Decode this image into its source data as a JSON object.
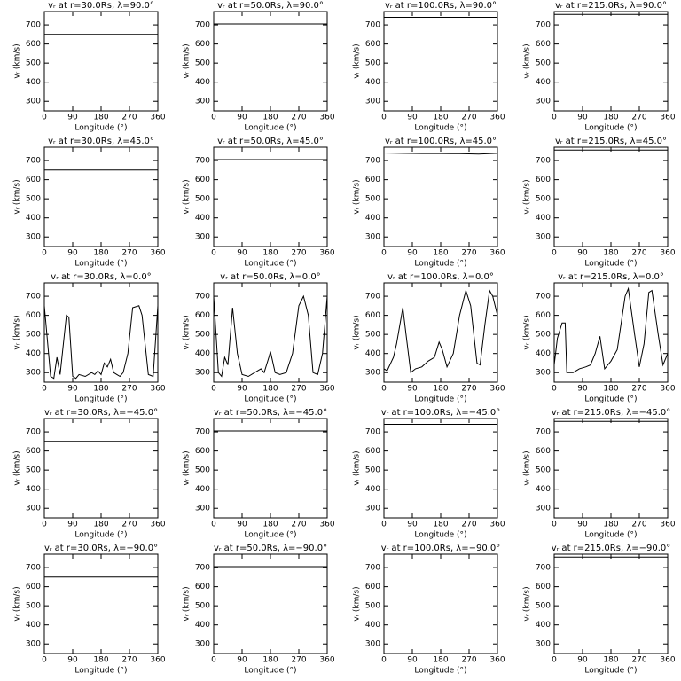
{
  "chart_data": [
    {
      "type": "line",
      "title": "vᵣ at r=30.0Rs, λ=90.0°",
      "xlabel": "Longitude (°)",
      "ylabel": "vᵣ (km/s)",
      "x": [
        0,
        360
      ],
      "values": [
        650,
        650
      ],
      "color": "#000000",
      "xlim": [
        0,
        360
      ],
      "ylim": [
        250,
        770
      ],
      "xticks": [
        0,
        90,
        180,
        270,
        360
      ],
      "yticks": [
        300,
        400,
        500,
        600,
        700
      ]
    },
    {
      "type": "line",
      "title": "vᵣ at r=50.0Rs, λ=90.0°",
      "xlabel": "Longitude (°)",
      "ylabel": "vᵣ (km/s)",
      "x": [
        0,
        360
      ],
      "values": [
        705,
        705
      ],
      "color": "#000000",
      "xlim": [
        0,
        360
      ],
      "ylim": [
        250,
        770
      ],
      "xticks": [
        0,
        90,
        180,
        270,
        360
      ],
      "yticks": [
        300,
        400,
        500,
        600,
        700
      ]
    },
    {
      "type": "line",
      "title": "vᵣ at r=100.0Rs, λ=90.0°",
      "xlabel": "Longitude (°)",
      "ylabel": "vᵣ (km/s)",
      "x": [
        0,
        360
      ],
      "values": [
        740,
        740
      ],
      "color": "#000000",
      "xlim": [
        0,
        360
      ],
      "ylim": [
        250,
        770
      ],
      "xticks": [
        0,
        90,
        180,
        270,
        360
      ],
      "yticks": [
        300,
        400,
        500,
        600,
        700
      ]
    },
    {
      "type": "line",
      "title": "vᵣ at r=215.0Rs, λ=90.0°",
      "xlabel": "Longitude (°)",
      "ylabel": "vᵣ (km/s)",
      "x": [
        0,
        360
      ],
      "values": [
        755,
        755
      ],
      "color": "#000000",
      "xlim": [
        0,
        360
      ],
      "ylim": [
        250,
        770
      ],
      "xticks": [
        0,
        90,
        180,
        270,
        360
      ],
      "yticks": [
        300,
        400,
        500,
        600,
        700
      ]
    },
    {
      "type": "line",
      "title": "vᵣ at r=30.0Rs, λ=45.0°",
      "xlabel": "Longitude (°)",
      "ylabel": "vᵣ (km/s)",
      "x": [
        0,
        360
      ],
      "values": [
        650,
        650
      ],
      "color": "#000000",
      "xlim": [
        0,
        360
      ],
      "ylim": [
        250,
        770
      ],
      "xticks": [
        0,
        90,
        180,
        270,
        360
      ],
      "yticks": [
        300,
        400,
        500,
        600,
        700
      ]
    },
    {
      "type": "line",
      "title": "vᵣ at r=50.0Rs, λ=45.0°",
      "xlabel": "Longitude (°)",
      "ylabel": "vᵣ (km/s)",
      "x": [
        0,
        360
      ],
      "values": [
        705,
        705
      ],
      "color": "#000000",
      "xlim": [
        0,
        360
      ],
      "ylim": [
        250,
        770
      ],
      "xticks": [
        0,
        90,
        180,
        270,
        360
      ],
      "yticks": [
        300,
        400,
        500,
        600,
        700
      ]
    },
    {
      "type": "line",
      "title": "vᵣ at r=100.0Rs, λ=45.0°",
      "xlabel": "Longitude (°)",
      "ylabel": "vᵣ (km/s)",
      "x": [
        0,
        60,
        120,
        180,
        240,
        300,
        360
      ],
      "values": [
        740,
        738,
        737,
        737,
        736,
        734,
        738
      ],
      "color": "#000000",
      "xlim": [
        0,
        360
      ],
      "ylim": [
        250,
        770
      ],
      "xticks": [
        0,
        90,
        180,
        270,
        360
      ],
      "yticks": [
        300,
        400,
        500,
        600,
        700
      ]
    },
    {
      "type": "line",
      "title": "vᵣ at r=215.0Rs, λ=45.0°",
      "xlabel": "Longitude (°)",
      "ylabel": "vᵣ (km/s)",
      "x": [
        0,
        360
      ],
      "values": [
        755,
        755
      ],
      "color": "#000000",
      "xlim": [
        0,
        360
      ],
      "ylim": [
        250,
        770
      ],
      "xticks": [
        0,
        90,
        180,
        270,
        360
      ],
      "yticks": [
        300,
        400,
        500,
        600,
        700
      ]
    },
    {
      "type": "line",
      "title": "vᵣ at r=30.0Rs, λ=0.0°",
      "xlabel": "Longitude (°)",
      "ylabel": "vᵣ (km/s)",
      "x": [
        0,
        20,
        30,
        40,
        50,
        70,
        78,
        90,
        100,
        110,
        130,
        150,
        160,
        170,
        180,
        190,
        200,
        210,
        220,
        230,
        240,
        250,
        265,
        280,
        300,
        310,
        330,
        345,
        360
      ],
      "values": [
        650,
        280,
        270,
        380,
        290,
        600,
        590,
        280,
        270,
        290,
        280,
        300,
        290,
        310,
        290,
        350,
        330,
        370,
        300,
        290,
        280,
        300,
        400,
        640,
        650,
        600,
        290,
        280,
        650
      ],
      "color": "#000000",
      "xlim": [
        0,
        360
      ],
      "ylim": [
        250,
        770
      ],
      "xticks": [
        0,
        90,
        180,
        270,
        360
      ],
      "yticks": [
        300,
        400,
        500,
        600,
        700
      ]
    },
    {
      "type": "line",
      "title": "vᵣ at r=50.0Rs, λ=0.0°",
      "xlabel": "Longitude (°)",
      "ylabel": "vᵣ (km/s)",
      "x": [
        0,
        15,
        25,
        35,
        45,
        60,
        75,
        90,
        110,
        130,
        150,
        160,
        175,
        180,
        195,
        210,
        230,
        250,
        270,
        285,
        300,
        315,
        330,
        345,
        360
      ],
      "values": [
        700,
        300,
        280,
        380,
        340,
        640,
        400,
        290,
        280,
        300,
        320,
        300,
        380,
        410,
        300,
        290,
        300,
        400,
        650,
        700,
        600,
        300,
        290,
        400,
        700
      ],
      "color": "#000000",
      "xlim": [
        0,
        360
      ],
      "ylim": [
        250,
        770
      ],
      "xticks": [
        0,
        90,
        180,
        270,
        360
      ],
      "yticks": [
        300,
        400,
        500,
        600,
        700
      ]
    },
    {
      "type": "line",
      "title": "vᵣ at r=100.0Rs, λ=0.0°",
      "xlabel": "Longitude (°)",
      "ylabel": "vᵣ (km/s)",
      "x": [
        0,
        10,
        30,
        40,
        60,
        70,
        85,
        100,
        120,
        140,
        160,
        175,
        185,
        200,
        220,
        240,
        260,
        275,
        295,
        305,
        320,
        335,
        345,
        360
      ],
      "values": [
        320,
        310,
        380,
        450,
        640,
        500,
        300,
        320,
        330,
        360,
        380,
        460,
        420,
        330,
        400,
        600,
        730,
        650,
        350,
        340,
        550,
        730,
        700,
        600
      ],
      "color": "#000000",
      "xlim": [
        0,
        360
      ],
      "ylim": [
        250,
        770
      ],
      "xticks": [
        0,
        90,
        180,
        270,
        360
      ],
      "yticks": [
        300,
        400,
        500,
        600,
        700
      ]
    },
    {
      "type": "line",
      "title": "vᵣ at r=215.0Rs, λ=0.0°",
      "xlabel": "Longitude (°)",
      "ylabel": "vᵣ (km/s)",
      "x": [
        0,
        10,
        25,
        35,
        40,
        60,
        80,
        100,
        115,
        130,
        145,
        160,
        180,
        200,
        225,
        235,
        255,
        270,
        285,
        300,
        310,
        330,
        345,
        360
      ],
      "values": [
        340,
        480,
        560,
        560,
        300,
        300,
        320,
        330,
        340,
        400,
        490,
        320,
        360,
        420,
        700,
        740,
        500,
        330,
        450,
        720,
        730,
        500,
        340,
        400
      ],
      "color": "#000000",
      "xlim": [
        0,
        360
      ],
      "ylim": [
        250,
        770
      ],
      "xticks": [
        0,
        90,
        180,
        270,
        360
      ],
      "yticks": [
        300,
        400,
        500,
        600,
        700
      ]
    },
    {
      "type": "line",
      "title": "vᵣ at r=30.0Rs, λ=−45.0°",
      "xlabel": "Longitude (°)",
      "ylabel": "vᵣ (km/s)",
      "x": [
        0,
        360
      ],
      "values": [
        650,
        650
      ],
      "color": "#000000",
      "xlim": [
        0,
        360
      ],
      "ylim": [
        250,
        770
      ],
      "xticks": [
        0,
        90,
        180,
        270,
        360
      ],
      "yticks": [
        300,
        400,
        500,
        600,
        700
      ]
    },
    {
      "type": "line",
      "title": "vᵣ at r=50.0Rs, λ=−45.0°",
      "xlabel": "Longitude (°)",
      "ylabel": "vᵣ (km/s)",
      "x": [
        0,
        360
      ],
      "values": [
        705,
        705
      ],
      "color": "#000000",
      "xlim": [
        0,
        360
      ],
      "ylim": [
        250,
        770
      ],
      "xticks": [
        0,
        90,
        180,
        270,
        360
      ],
      "yticks": [
        300,
        400,
        500,
        600,
        700
      ]
    },
    {
      "type": "line",
      "title": "vᵣ at r=100.0Rs, λ=−45.0°",
      "xlabel": "Longitude (°)",
      "ylabel": "vᵣ (km/s)",
      "x": [
        0,
        360
      ],
      "values": [
        740,
        740
      ],
      "color": "#000000",
      "xlim": [
        0,
        360
      ],
      "ylim": [
        250,
        770
      ],
      "xticks": [
        0,
        90,
        180,
        270,
        360
      ],
      "yticks": [
        300,
        400,
        500,
        600,
        700
      ]
    },
    {
      "type": "line",
      "title": "vᵣ at r=215.0Rs, λ=−45.0°",
      "xlabel": "Longitude (°)",
      "ylabel": "vᵣ (km/s)",
      "x": [
        0,
        360
      ],
      "values": [
        755,
        755
      ],
      "color": "#000000",
      "xlim": [
        0,
        360
      ],
      "ylim": [
        250,
        770
      ],
      "xticks": [
        0,
        90,
        180,
        270,
        360
      ],
      "yticks": [
        300,
        400,
        500,
        600,
        700
      ]
    },
    {
      "type": "line",
      "title": "vᵣ at r=30.0Rs, λ=−90.0°",
      "xlabel": "Longitude (°)",
      "ylabel": "vᵣ (km/s)",
      "x": [
        0,
        360
      ],
      "values": [
        650,
        650
      ],
      "color": "#000000",
      "xlim": [
        0,
        360
      ],
      "ylim": [
        250,
        770
      ],
      "xticks": [
        0,
        90,
        180,
        270,
        360
      ],
      "yticks": [
        300,
        400,
        500,
        600,
        700
      ]
    },
    {
      "type": "line",
      "title": "vᵣ at r=50.0Rs, λ=−90.0°",
      "xlabel": "Longitude (°)",
      "ylabel": "vᵣ (km/s)",
      "x": [
        0,
        360
      ],
      "values": [
        705,
        705
      ],
      "color": "#000000",
      "xlim": [
        0,
        360
      ],
      "ylim": [
        250,
        770
      ],
      "xticks": [
        0,
        90,
        180,
        270,
        360
      ],
      "yticks": [
        300,
        400,
        500,
        600,
        700
      ]
    },
    {
      "type": "line",
      "title": "vᵣ at r=100.0Rs, λ=−90.0°",
      "xlabel": "Longitude (°)",
      "ylabel": "vᵣ (km/s)",
      "x": [
        0,
        360
      ],
      "values": [
        740,
        740
      ],
      "color": "#000000",
      "xlim": [
        0,
        360
      ],
      "ylim": [
        250,
        770
      ],
      "xticks": [
        0,
        90,
        180,
        270,
        360
      ],
      "yticks": [
        300,
        400,
        500,
        600,
        700
      ]
    },
    {
      "type": "line",
      "title": "vᵣ at r=215.0Rs, λ=−90.0°",
      "xlabel": "Longitude (°)",
      "ylabel": "vᵣ (km/s)",
      "x": [
        0,
        360
      ],
      "values": [
        755,
        755
      ],
      "color": "#000000",
      "xlim": [
        0,
        360
      ],
      "ylim": [
        250,
        770
      ],
      "xticks": [
        0,
        90,
        180,
        270,
        360
      ],
      "yticks": [
        300,
        400,
        500,
        600,
        700
      ]
    }
  ]
}
